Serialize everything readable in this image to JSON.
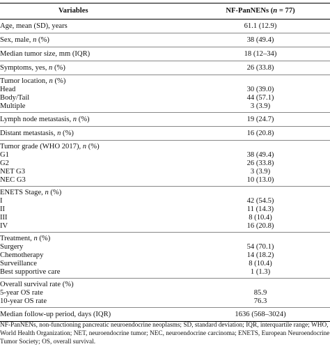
{
  "header": {
    "variables": "Variables",
    "cohort_prefix": "NF-PanNENs (",
    "cohort_italic": "n",
    "cohort_suffix": " = 77)"
  },
  "groups": [
    {
      "rows": [
        {
          "label": "Age, mean (SD), years",
          "value": "61.1 (12.9)"
        }
      ]
    },
    {
      "rows": [
        {
          "label": "Sex, male, n (%)",
          "value": "38 (49.4)"
        }
      ]
    },
    {
      "rows": [
        {
          "label": "Median tumor size, mm (IQR)",
          "value": "18 (12–34)"
        }
      ]
    },
    {
      "rows": [
        {
          "label": "Symptoms, yes, n (%)",
          "value": "26 (33.8)"
        }
      ]
    },
    {
      "rows": [
        {
          "label": "Tumor location, n (%)",
          "value": ""
        },
        {
          "label": "Head",
          "value": "30 (39.0)",
          "sub": true
        },
        {
          "label": "Body/Tail",
          "value": "44 (57.1)",
          "sub": true
        },
        {
          "label": "Multiple",
          "value": "3 (3.9)",
          "sub": true
        }
      ]
    },
    {
      "rows": [
        {
          "label": "Lymph node metastasis, n (%)",
          "value": "19 (24.7)"
        }
      ]
    },
    {
      "rows": [
        {
          "label": "Distant metastasis, n (%)",
          "value": "16 (20.8)"
        }
      ]
    },
    {
      "rows": [
        {
          "label": "Tumor grade (WHO 2017), n (%)",
          "value": ""
        },
        {
          "label": "G1",
          "value": "38 (49.4)",
          "sub": true
        },
        {
          "label": "G2",
          "value": "26 (33.8)",
          "sub": true
        },
        {
          "label": "NET G3",
          "value": "3 (3.9)",
          "sub": true
        },
        {
          "label": "NEC G3",
          "value": "10 (13.0)",
          "sub": true
        }
      ]
    },
    {
      "rows": [
        {
          "label": "ENETS Stage, n (%)",
          "value": ""
        },
        {
          "label": "I",
          "value": "42 (54.5)",
          "sub": true
        },
        {
          "label": "II",
          "value": "11 (14.3)",
          "sub": true
        },
        {
          "label": "III",
          "value": "8 (10.4)",
          "sub": true
        },
        {
          "label": "IV",
          "value": "16 (20.8)",
          "sub": true
        }
      ]
    },
    {
      "rows": [
        {
          "label": "Treatment, n (%)",
          "value": ""
        },
        {
          "label": "Surgery",
          "value": "54 (70.1)",
          "sub": true
        },
        {
          "label": "Chemotherapy",
          "value": "14 (18.2)",
          "sub": true
        },
        {
          "label": "Surveillance",
          "value": "8 (10.4)",
          "sub": true
        },
        {
          "label": "Best supportive care",
          "value": "1 (1.3)",
          "sub": true
        }
      ]
    },
    {
      "rows": [
        {
          "label": "Overall survival rate (%)",
          "value": ""
        },
        {
          "label": "5-year OS rate",
          "value": "85.9",
          "sub": true
        },
        {
          "label": "10-year OS rate",
          "value": "76.3",
          "sub": true
        }
      ]
    },
    {
      "rows": [
        {
          "label": "Median follow-up period, days (IQR)",
          "value": "1636 (568–3024)"
        }
      ]
    }
  ],
  "footnote": "NF-PanNENs, non-functioning pancreatic neuroendocrine neoplasms; SD, standard deviation; IQR, interquartile range; WHO, World Health Organization; NET, neuroendocrine tumor; NEC, neuroendocrine carcinoma; ENETS, European Neuroendocrine Tumor Society; OS, overall survival."
}
